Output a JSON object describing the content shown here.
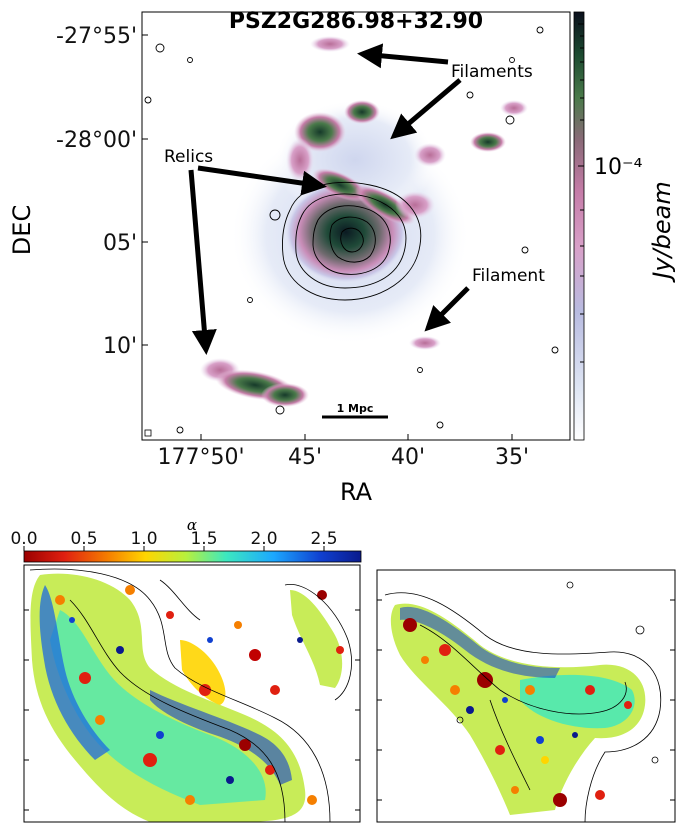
{
  "top_panel": {
    "title": "PSZ2G286.98+32.90",
    "y_axis_label": "DEC",
    "x_axis_label": "RA",
    "dec_ticks": [
      "-27°55'",
      "-28°00'",
      "05'",
      "10'"
    ],
    "ra_ticks": [
      "177°50'",
      "45'",
      "40'",
      "35'"
    ],
    "annotations": {
      "filaments": "Filaments",
      "relics": "Relics",
      "filament": "Filament"
    },
    "scale_bar_label": "1 Mpc",
    "colorbar": {
      "label": "Jy/beam",
      "tick_label": "10⁻⁴",
      "colors": [
        "#ffffff",
        "#dfe6f4",
        "#b8bbe0",
        "#d8a0c8",
        "#c57ca8",
        "#8a6a78",
        "#4a7a4a",
        "#1c4a30",
        "#0b0f1c"
      ]
    }
  },
  "bottom_panel": {
    "colorbar_label": "α",
    "colorbar_ticks": [
      "0.0",
      "0.5",
      "1.0",
      "1.5",
      "2.0",
      "2.5"
    ],
    "colorbar_range": [
      0.0,
      2.8
    ],
    "colormap": [
      "#9b0000",
      "#e02010",
      "#f57f00",
      "#ffd500",
      "#b8f03c",
      "#3ce8c0",
      "#1ca8ff",
      "#1040d0",
      "#0a1a8c"
    ]
  }
}
